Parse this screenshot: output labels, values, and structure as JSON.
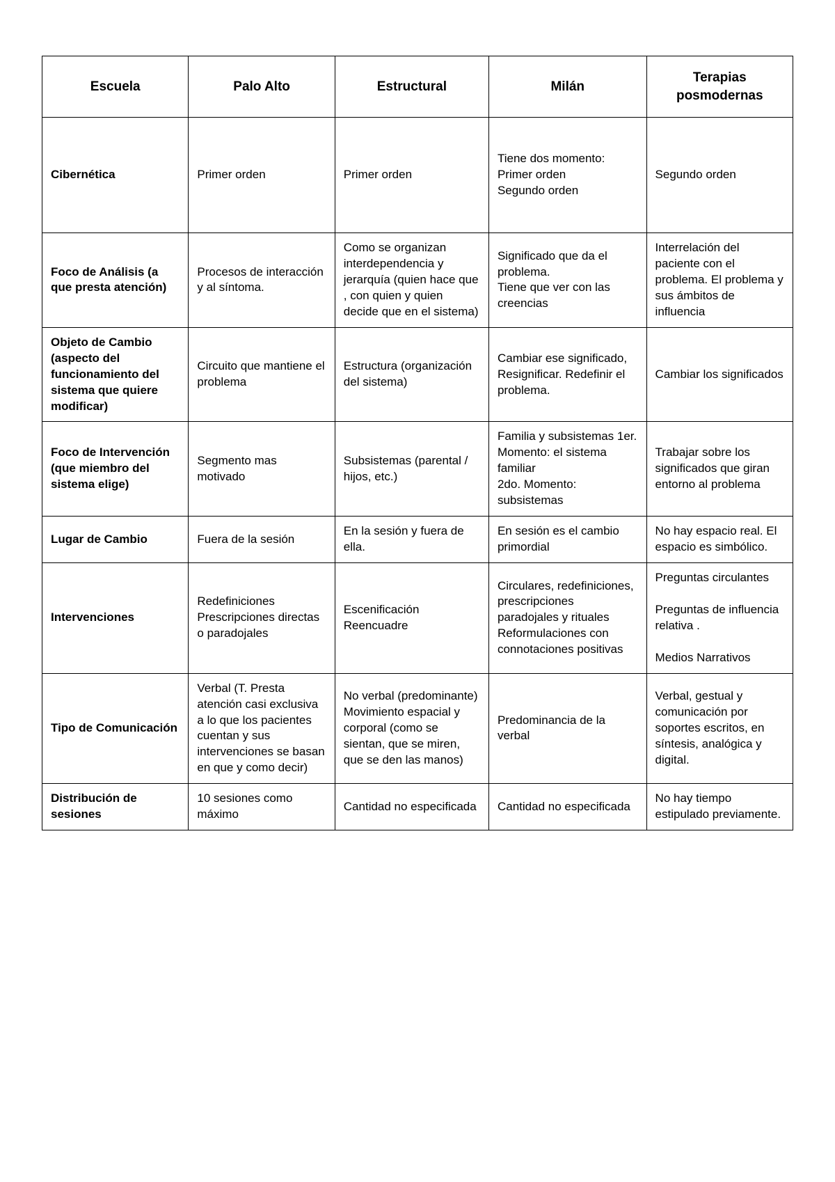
{
  "table": {
    "type": "table",
    "border_color": "#000000",
    "background_color": "#ffffff",
    "text_color": "#000000",
    "font_family": "Comic Sans MS",
    "header_fontsize_pt": 14,
    "body_fontsize_pt": 13,
    "columns": [
      {
        "label": "Escuela",
        "width_pct": 19.5
      },
      {
        "label": "Palo Alto",
        "width_pct": 19.5
      },
      {
        "label": "Estructural",
        "width_pct": 20.5
      },
      {
        "label": "Milán",
        "width_pct": 21.0
      },
      {
        "label": "Terapias posmodernas",
        "width_pct": 19.5
      }
    ],
    "rows": [
      {
        "label": "Cibernética",
        "palo_alto": "Primer orden",
        "estructural": "Primer orden",
        "milan": "Tiene dos momento:\nPrimer orden\nSegundo orden",
        "posmodernas": "Segundo orden"
      },
      {
        "label": "Foco de Análisis (a que presta atención)",
        "palo_alto": "Procesos de interacción y al síntoma.",
        "estructural": "Como se organizan interdependencia y jerarquía (quien hace que , con quien y quien decide que en el sistema)",
        "milan": "Significado que da el problema.\nTiene que ver con las creencias",
        "posmodernas": "Interrelación del paciente con el problema. El problema y sus ámbitos de influencia"
      },
      {
        "label": "Objeto de Cambio (aspecto del funcionamiento del sistema que quiere modificar)",
        "palo_alto": "Circuito que mantiene el problema",
        "estructural": "Estructura (organización del sistema)",
        "milan": "Cambiar ese significado, Resignificar. Redefinir el problema.",
        "posmodernas": "Cambiar los significados"
      },
      {
        "label": "Foco de Intervención (que miembro del sistema elige)",
        "palo_alto": "Segmento mas motivado",
        "estructural": "Subsistemas (parental / hijos, etc.)",
        "milan": "Familia y subsistemas 1er. Momento: el sistema familiar\n2do. Momento: subsistemas",
        "posmodernas": "Trabajar sobre los significados que giran entorno al problema"
      },
      {
        "label": "Lugar de Cambio",
        "palo_alto": "Fuera de la sesión",
        "estructural": "En la sesión y fuera de ella.",
        "milan": "En sesión es el cambio primordial",
        "posmodernas": "No hay espacio real. El espacio es simbólico."
      },
      {
        "label": "Intervenciones",
        "palo_alto": "Redefiniciones Prescripciones directas o paradojales",
        "estructural": "Escenificación\nReencuadre",
        "milan": "Circulares, redefiniciones, prescripciones paradojales y rituales Reformulaciones con connotaciones positivas",
        "posmodernas": "Preguntas circulantes\n\nPreguntas de influencia relativa .\n\nMedios Narrativos"
      },
      {
        "label": "Tipo de Comunicación",
        "palo_alto": "Verbal (T. Presta atención casi exclusiva  a lo que los pacientes cuentan y sus intervenciones se basan en que y como decir)",
        "estructural": "No verbal (predominante) Movimiento espacial y corporal (como se sientan, que se miren, que se den las manos)",
        "milan": "Predominancia de la verbal",
        "posmodernas": "Verbal, gestual y comunicación por soportes escritos, en síntesis, analógica y digital."
      },
      {
        "label": "Distribución de sesiones",
        "palo_alto": "10 sesiones como máximo",
        "estructural": "Cantidad no especificada",
        "milan": "Cantidad no especificada",
        "posmodernas": "No hay tiempo estipulado previamente."
      }
    ]
  }
}
